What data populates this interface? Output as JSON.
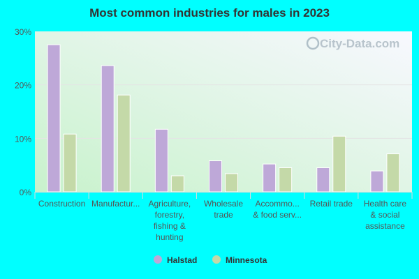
{
  "chart_data": {
    "type": "bar",
    "title": "Most common industries for males in 2023",
    "categories": [
      [
        "Construction"
      ],
      [
        "Manufactur..."
      ],
      [
        "Agriculture,",
        "forestry,",
        "fishing &",
        "hunting"
      ],
      [
        "Wholesale",
        "trade"
      ],
      [
        "Accommo...",
        "& food serv..."
      ],
      [
        "Retail trade"
      ],
      [
        "Health care",
        "& social",
        "assistance"
      ]
    ],
    "series": [
      {
        "name": "Halstad",
        "color": "#bea8d8",
        "values": [
          27.5,
          23.6,
          11.7,
          5.8,
          5.2,
          4.5,
          3.9
        ]
      },
      {
        "name": "Minnesota",
        "color": "#c4d9a8",
        "values": [
          10.8,
          18.1,
          3.0,
          3.4,
          4.5,
          10.4,
          7.1
        ]
      }
    ],
    "ylim": [
      0,
      30
    ],
    "yticks": [
      "0%",
      "10%",
      "20%",
      "30%"
    ],
    "ytick_values": [
      0,
      10,
      20,
      30
    ],
    "grid": true,
    "legend_placement": "bottom",
    "watermark": "City-Data.com"
  }
}
